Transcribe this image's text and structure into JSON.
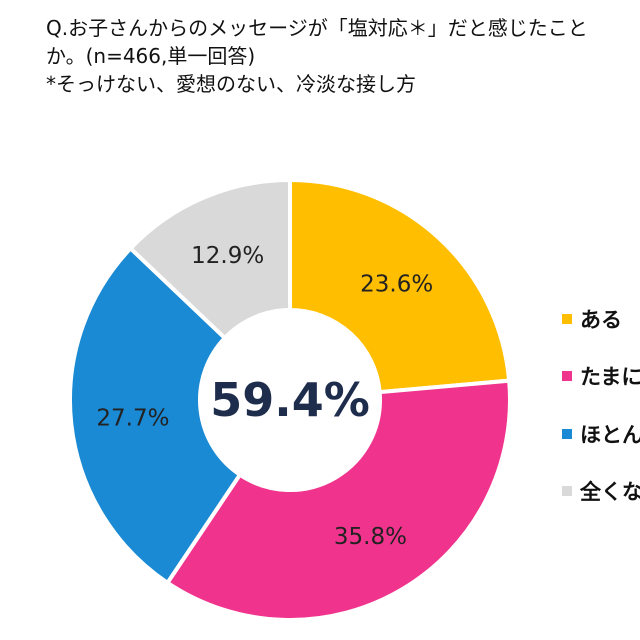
{
  "title": {
    "line1": "Q.お子さんからのメッセージが「塩対応＊」だと感じたこと",
    "line2": "か。(n=466,単一回答)",
    "line3": "*そっけない、愛想のない、冷淡な接し方"
  },
  "chart_data": {
    "type": "pie",
    "donut": true,
    "center_label": "59.4%",
    "start": "top, clockwise",
    "categories": [
      "ある",
      "たまに",
      "ほとん",
      "全くな"
    ],
    "values": [
      23.6,
      35.8,
      27.7,
      12.9
    ],
    "labels": [
      "23.6%",
      "35.8%",
      "27.7%",
      "12.9%"
    ],
    "colors": [
      "#FFBE00",
      "#F0338C",
      "#1A8AD4",
      "#D9D9D9"
    ],
    "legend": "right"
  }
}
